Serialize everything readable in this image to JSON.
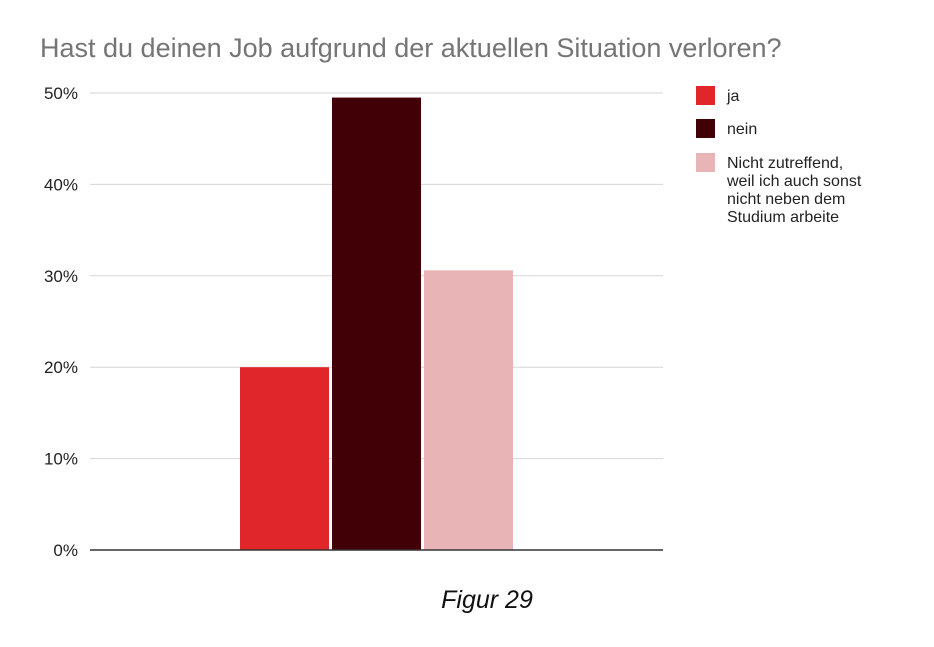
{
  "chart_data": {
    "type": "bar",
    "title": "Hast du deinen Job aufgrund der aktuellen Situation verloren?",
    "caption": "Figur 29",
    "xlabel": "",
    "ylabel": "",
    "ylim": [
      0,
      50
    ],
    "yticks": [
      0,
      10,
      20,
      30,
      40,
      50
    ],
    "yticklabels": [
      "0%",
      "10%",
      "20%",
      "30%",
      "40%",
      "50%"
    ],
    "grid": true,
    "legend_position": "right",
    "series": [
      {
        "name": "ja",
        "value": 20,
        "color": "#e0262b"
      },
      {
        "name": "nein",
        "value": 49.5,
        "color": "#410006"
      },
      {
        "name": "Nicht zutreffend, weil ich auch sonst nicht neben dem Studium arbeite",
        "legend_lines": [
          "Nicht zutreffend,",
          "weil ich auch sonst",
          "nicht neben dem",
          "Studium arbeite"
        ],
        "value": 30.6,
        "color": "#e8b4b6"
      }
    ]
  }
}
